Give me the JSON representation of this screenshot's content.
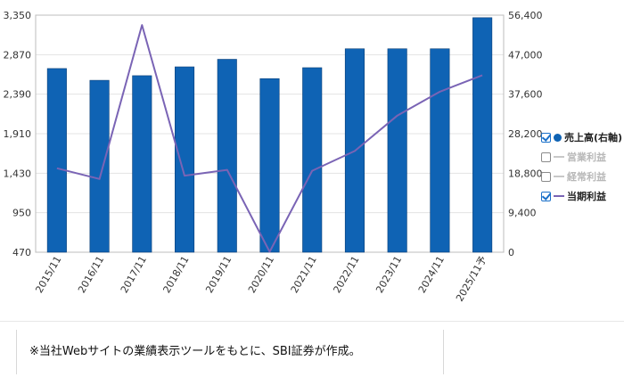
{
  "chart_data": {
    "type": "bar+line",
    "categories": [
      "2015/11",
      "2016/11",
      "2017/11",
      "2018/11",
      "2019/11",
      "2020/11",
      "2021/11",
      "2022/11",
      "2023/11",
      "2024/11",
      "2025/11予"
    ],
    "bar_series": {
      "name": "売上高(右軸)",
      "axis": "right",
      "color": "#0f63b4",
      "values": [
        43700,
        40900,
        42000,
        44100,
        45900,
        41300,
        43900,
        48400,
        48400,
        48400,
        55800
      ]
    },
    "line_series": {
      "name": "当期利益",
      "axis": "left",
      "color": "#7a64b5",
      "values": [
        1490,
        1360,
        3230,
        1400,
        1470,
        475,
        1460,
        1700,
        2130,
        2420,
        2620
      ]
    },
    "left_axis": {
      "ticks": [
        "3,350",
        "2,870",
        "2,390",
        "1,910",
        "1,430",
        "950",
        "470"
      ],
      "min": 470,
      "max": 3350
    },
    "right_axis": {
      "ticks": [
        "56,400",
        "47,000",
        "37,600",
        "28,200",
        "18,800",
        "9,400",
        "0"
      ],
      "min": 0,
      "max": 56400
    },
    "grid": true,
    "legend_position": "right"
  },
  "legend": [
    {
      "label": "売上高(右軸)",
      "checked": true,
      "swatch": "dot",
      "color": "#0f63b4",
      "enabled": true
    },
    {
      "label": "営業利益",
      "checked": false,
      "swatch": "line",
      "color": "#c8c8c8",
      "enabled": false
    },
    {
      "label": "経常利益",
      "checked": false,
      "swatch": "line",
      "color": "#c8c8c8",
      "enabled": false
    },
    {
      "label": "当期利益",
      "checked": true,
      "swatch": "line",
      "color": "#7a64b5",
      "enabled": true
    }
  ],
  "note": "※当社Webサイトの業績表示ツールをもとに、SBI証券が作成。"
}
